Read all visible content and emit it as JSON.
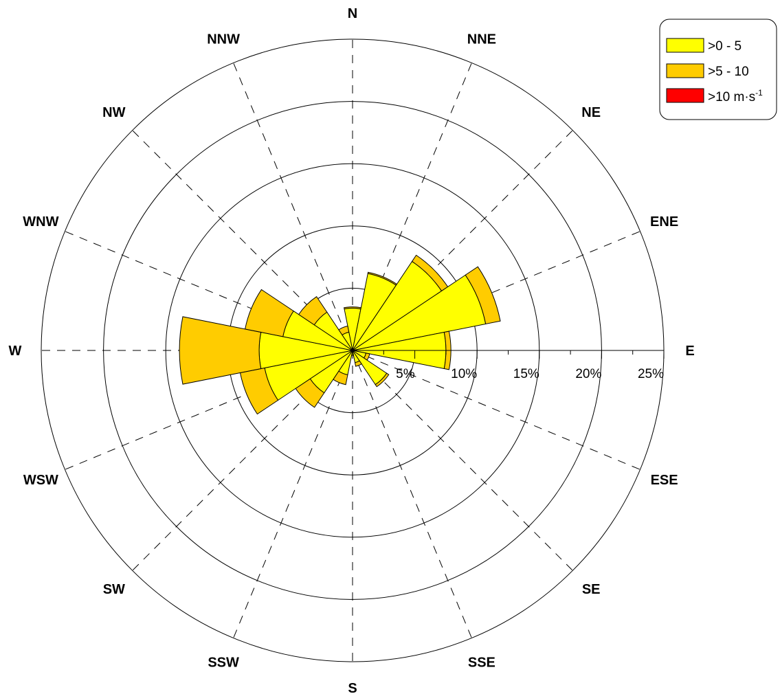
{
  "chart_data": {
    "type": "wind-rose",
    "directions": [
      "N",
      "NNE",
      "NE",
      "ENE",
      "E",
      "ESE",
      "SE",
      "SSE",
      "S",
      "SSW",
      "SW",
      "WSW",
      "W",
      "WNW",
      "NW",
      "NNW"
    ],
    "radial_ticks": [
      "5%",
      "10%",
      "15%",
      "20%",
      "25%"
    ],
    "radial_max": 25,
    "series": [
      {
        "name": ">0 - 5",
        "color": "#ffff00",
        "values": [
          3.4,
          6.3,
          8.6,
          10.9,
          7.5,
          1.1,
          3.3,
          1.0,
          0.3,
          2.0,
          4.1,
          7.2,
          7.5,
          5.7,
          3.7,
          1.5
        ]
      },
      {
        "name": ">5 - 10",
        "color": "#ffcc00",
        "values": [
          0.1,
          0.1,
          0.6,
          1.2,
          0.4,
          0.3,
          0.2,
          0.3,
          0.1,
          0.8,
          1.4,
          2.0,
          6.4,
          3.1,
          1.5,
          0.5
        ]
      },
      {
        "name": ">10 m·s",
        "sup": "-1",
        "color": "#ff0000",
        "values": [
          0,
          0,
          0,
          0,
          0,
          0,
          0,
          0,
          0,
          0,
          0,
          0,
          0,
          0,
          0,
          0
        ]
      }
    ],
    "grid": true,
    "legend_position": "top-right"
  }
}
